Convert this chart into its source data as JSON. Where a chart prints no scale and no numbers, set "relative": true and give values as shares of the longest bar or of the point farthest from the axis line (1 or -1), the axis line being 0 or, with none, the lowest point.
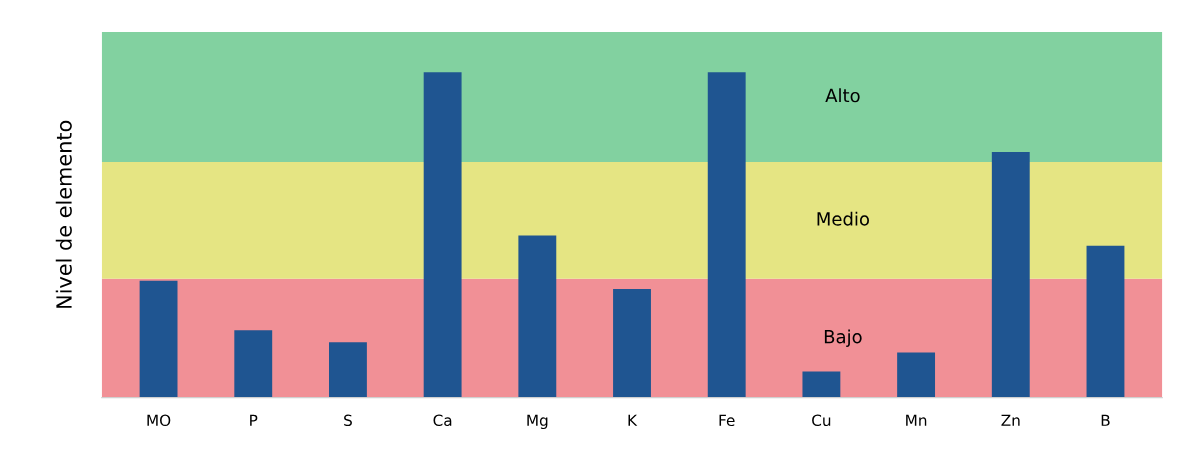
{
  "chart_data": {
    "type": "bar",
    "relative": true,
    "ylabel": "Nivel de elemento",
    "categories": [
      "MO",
      "P",
      "S",
      "Ca",
      "Mg",
      "K",
      "Fe",
      "Cu",
      "Mn",
      "Zn",
      "B"
    ],
    "values": [
      0.359,
      0.207,
      0.17,
      1,
      0.498,
      0.334,
      1,
      0.08,
      0.139,
      0.755,
      0.467
    ],
    "color": "#1f5591",
    "bands": [
      {
        "axis": "y",
        "from": 0,
        "to": 0.365,
        "label": "Bajo",
        "color": "#f19096"
      },
      {
        "axis": "y",
        "from": 0.365,
        "to": 0.724,
        "label": "Medio",
        "color": "#e5e583"
      },
      {
        "axis": "y",
        "from": 0.724,
        "to": 1.124,
        "label": "Alto",
        "color": "#82d1a0"
      }
    ],
    "grid": false,
    "legend": false
  }
}
